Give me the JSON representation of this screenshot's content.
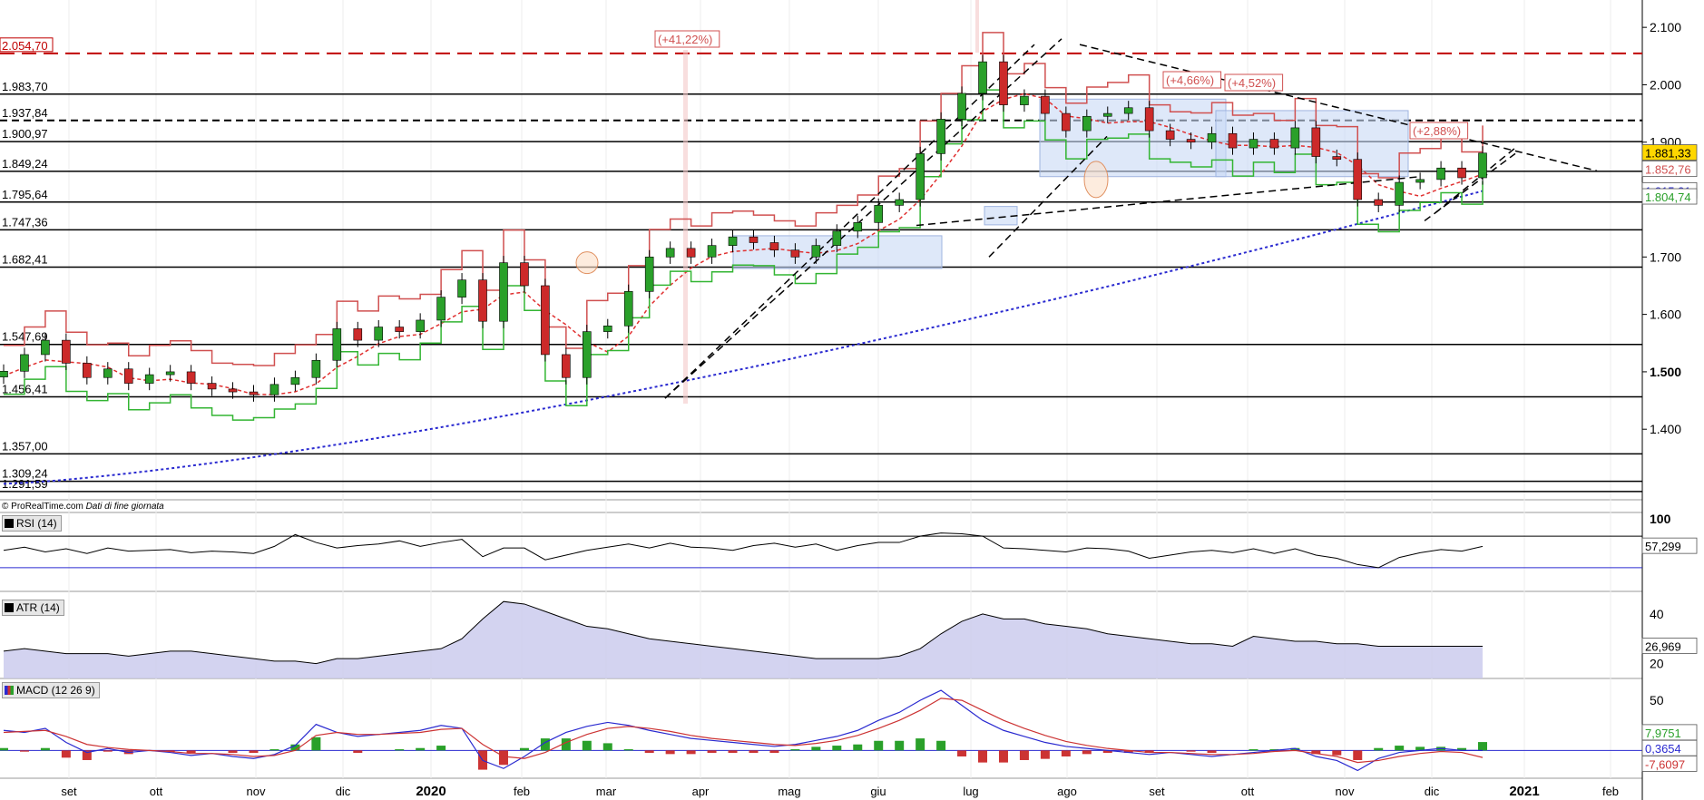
{
  "chart_data": [
    {
      "type": "candlestick",
      "title": "",
      "price_axis_ticks": [
        "2.100",
        "2.000",
        "1.900",
        "1.800",
        "1.700",
        "1.600",
        "1.500",
        "1.400"
      ],
      "price_axis_tick_values": [
        2100,
        2000,
        1900,
        1800,
        1700,
        1600,
        1500,
        1400
      ],
      "ylim": [
        1285,
        2135
      ],
      "time_axis_labels": [
        "set",
        "ott",
        "nov",
        "dic",
        "2020",
        "feb",
        "mar",
        "apr",
        "mag",
        "giu",
        "lug",
        "ago",
        "set",
        "ott",
        "nov",
        "dic",
        "2021",
        "feb"
      ],
      "time_axis_bold": [
        "2020",
        "2021"
      ],
      "horizontal_levels": [
        {
          "label": "2.054,70",
          "value": 2054.7,
          "style": "dashed",
          "color": "#c00000"
        },
        {
          "label": "1.983,70",
          "value": 1983.7,
          "style": "solid",
          "color": "#000000"
        },
        {
          "label": "1.937,84",
          "value": 1937.84,
          "style": "dashed",
          "color": "#000000"
        },
        {
          "label": "1.900,97",
          "value": 1900.97,
          "style": "solid",
          "color": "#000000"
        },
        {
          "label": "1.849,24",
          "value": 1849.24,
          "style": "solid",
          "color": "#000000"
        },
        {
          "label": "1.795,64",
          "value": 1795.64,
          "style": "solid",
          "color": "#000000"
        },
        {
          "label": "1.747,36",
          "value": 1747.36,
          "style": "solid",
          "color": "#000000"
        },
        {
          "label": "1.682,41",
          "value": 1682.41,
          "style": "solid",
          "color": "#000000"
        },
        {
          "label": "1.547,69",
          "value": 1547.69,
          "style": "solid",
          "color": "#000000"
        },
        {
          "label": "1.456,41",
          "value": 1456.41,
          "style": "solid",
          "color": "#000000"
        },
        {
          "label": "1.357,00",
          "value": 1357.0,
          "style": "solid",
          "color": "#000000"
        },
        {
          "label": "1.309,24",
          "value": 1309.24,
          "style": "solid",
          "color": "#000000"
        },
        {
          "label": "1.291,59",
          "value": 1291.59,
          "style": "solid",
          "color": "#000000"
        }
      ],
      "annotations": [
        "(+41,22%)",
        "(+4,66%)",
        "(+4,52%)",
        "(+2,88%)"
      ],
      "last_values": [
        {
          "label": "1.881,33",
          "value": 1881.33,
          "bg": "#ffd700",
          "color": "#000000"
        },
        {
          "label": "1.852,76",
          "value": 1852.76,
          "bg": "#ffffff",
          "color": "#d05050"
        },
        {
          "label": "1.815,31",
          "value": 1815.31,
          "bg": "#ffffff",
          "color": "#2a2ad0"
        },
        {
          "label": "1.804,74",
          "value": 1804.74,
          "bg": "#ffffff",
          "color": "#2aa02a"
        }
      ],
      "series": [
        {
          "name": "Close",
          "values": [
            1501,
            1530,
            1555,
            1515,
            1490,
            1505,
            1480,
            1495,
            1500,
            1480,
            1470,
            1465,
            1460,
            1478,
            1490,
            1520,
            1575,
            1555,
            1578,
            1570,
            1590,
            1630,
            1660,
            1588,
            1690,
            1650,
            1530,
            1490,
            1570,
            1580,
            1640,
            1700,
            1715,
            1700,
            1720,
            1735,
            1725,
            1712,
            1700,
            1720,
            1745,
            1760,
            1790,
            1800,
            1880,
            1940,
            1985,
            2040,
            1965,
            1980,
            1950,
            1920,
            1945,
            1950,
            1960,
            1920,
            1905,
            1900,
            1915,
            1890,
            1905,
            1890,
            1925,
            1875,
            1870,
            1800,
            1790,
            1830,
            1835,
            1855,
            1838,
            1881
          ]
        }
      ]
    },
    {
      "type": "line",
      "title": "RSI (14)",
      "ylim": [
        0,
        100
      ],
      "axis_ticks": [
        "100"
      ],
      "levels": [
        70,
        30
      ],
      "last_value": "57,299",
      "series": [
        {
          "values": [
            52,
            56,
            50,
            54,
            48,
            55,
            51,
            52,
            53,
            49,
            51,
            50,
            48,
            57,
            72,
            62,
            55,
            58,
            60,
            64,
            57,
            62,
            66,
            44,
            55,
            55,
            40,
            46,
            52,
            56,
            60,
            55,
            61,
            56,
            55,
            52,
            58,
            61,
            56,
            60,
            52,
            58,
            62,
            62,
            70,
            74,
            73,
            70,
            55,
            54,
            52,
            50,
            55,
            54,
            51,
            42,
            46,
            50,
            52,
            49,
            54,
            48,
            54,
            46,
            42,
            34,
            30,
            43,
            49,
            53,
            51,
            57
          ]
        }
      ]
    },
    {
      "type": "area",
      "title": "ATR (14)",
      "axis_ticks": [
        "40",
        "20"
      ],
      "axis_tick_values": [
        40,
        20
      ],
      "ylim": [
        14,
        48
      ],
      "last_value": "26,969",
      "series": [
        {
          "values": [
            25,
            26,
            25,
            24,
            24,
            24,
            23,
            24,
            25,
            25,
            24,
            23,
            22,
            21,
            21,
            20,
            22,
            22,
            23,
            24,
            25,
            26,
            30,
            38,
            45,
            44,
            41,
            38,
            35,
            34,
            32,
            30,
            29,
            28,
            27,
            26,
            25,
            24,
            23,
            22,
            22,
            22,
            22,
            23,
            26,
            32,
            37,
            40,
            38,
            38,
            36,
            35,
            34,
            32,
            31,
            30,
            29,
            28,
            28,
            27,
            31,
            30,
            29,
            29,
            28,
            28,
            27,
            27,
            27,
            27,
            27,
            27
          ]
        }
      ]
    },
    {
      "type": "line",
      "title": "MACD (12 26 9)",
      "axis_ticks": [
        "50"
      ],
      "axis_tick_values": [
        50
      ],
      "ylim": [
        -25,
        70
      ],
      "last_values": [
        {
          "label": "7,9751",
          "color": "#2aa02a"
        },
        {
          "label": "0,3654",
          "color": "#2a2ad0"
        },
        {
          "label": "-7,6097",
          "color": "#cc3333"
        }
      ],
      "series": [
        {
          "values": [
            20,
            18,
            22,
            8,
            -2,
            2,
            -2,
            0,
            -2,
            -5,
            -3,
            -6,
            -8,
            -4,
            5,
            26,
            18,
            14,
            16,
            18,
            20,
            25,
            22,
            -10,
            -18,
            -6,
            8,
            18,
            24,
            28,
            25,
            20,
            16,
            12,
            10,
            8,
            6,
            4,
            6,
            10,
            14,
            20,
            30,
            38,
            50,
            60,
            45,
            30,
            20,
            14,
            8,
            4,
            2,
            0,
            -2,
            -4,
            -2,
            -4,
            -6,
            -4,
            -2,
            0,
            2,
            -6,
            -10,
            -20,
            -8,
            -2,
            0,
            2,
            0,
            0
          ]
        },
        {
          "values": [
            18,
            19,
            20,
            14,
            6,
            3,
            1,
            0,
            -1,
            -3,
            -3,
            -4,
            -6,
            -5,
            0,
            15,
            18,
            16,
            16,
            17,
            18,
            21,
            22,
            6,
            -6,
            -8,
            -2,
            8,
            16,
            22,
            24,
            22,
            19,
            15,
            12,
            10,
            8,
            6,
            5,
            7,
            10,
            15,
            22,
            30,
            40,
            52,
            50,
            40,
            30,
            22,
            15,
            9,
            5,
            2,
            0,
            -2,
            -2,
            -3,
            -4,
            -4,
            -3,
            -1,
            0,
            -3,
            -6,
            -12,
            -10,
            -6,
            -3,
            -1,
            -2,
            -7
          ]
        }
      ]
    }
  ],
  "footer": {
    "source": "© ProRealTime.com",
    "note": "Dati di fine giornata"
  }
}
